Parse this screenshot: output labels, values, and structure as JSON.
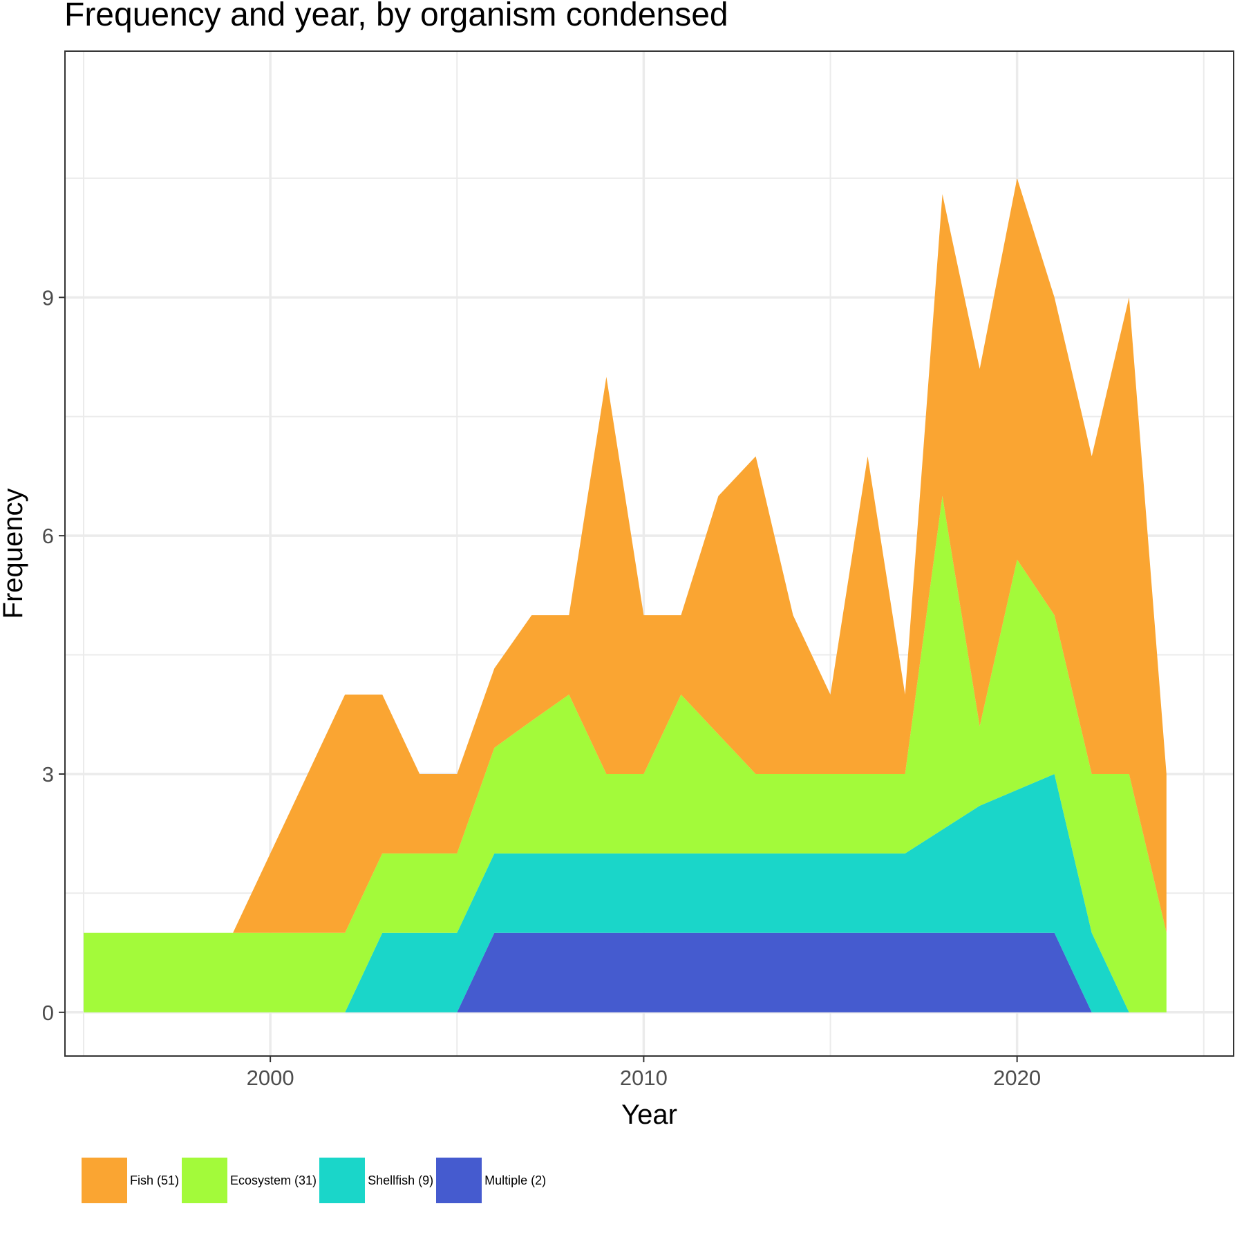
{
  "chart_data": {
    "type": "area",
    "stacked": true,
    "title": "Frequency and year, by organism condensed",
    "xlabel": "Year",
    "ylabel": "Frequency",
    "xlim": [
      1994.5,
      2025.8
    ],
    "ylim": [
      -0.55,
      12.1
    ],
    "x_ticks": [
      2000,
      2010,
      2020
    ],
    "y_ticks": [
      0,
      3,
      6,
      9
    ],
    "grid": true,
    "legend_position": "bottom",
    "x": [
      1995,
      1996,
      1997,
      1998,
      1999,
      2000,
      2001,
      2002,
      2003,
      2004,
      2005,
      2006,
      2007,
      2008,
      2009,
      2010,
      2011,
      2012,
      2013,
      2014,
      2015,
      2016,
      2017,
      2018,
      2019,
      2020,
      2021,
      2022,
      2023,
      2024
    ],
    "series": [
      {
        "name": "Multiple (2)",
        "color": "#455BCF",
        "values": [
          0,
          0,
          0,
          0,
          0,
          0,
          0,
          0,
          0,
          0,
          0,
          1,
          1,
          1,
          1,
          1,
          1,
          1,
          1,
          1,
          1,
          1,
          1,
          1,
          1,
          1,
          1,
          0,
          0,
          0
        ]
      },
      {
        "name": "Shellfish (9)",
        "color": "#1AD6C9",
        "values": [
          0,
          0,
          0,
          0,
          0,
          0,
          0,
          0,
          1,
          1,
          1,
          1,
          1,
          1,
          1,
          1,
          1,
          1,
          1,
          1,
          1,
          1,
          1,
          1.3,
          1.6,
          1.8,
          2,
          1,
          0,
          0
        ]
      },
      {
        "name": "Ecosystem (31)",
        "color": "#A3FA3A",
        "values": [
          1,
          1,
          1,
          1,
          1,
          1,
          1,
          1,
          1,
          1,
          1,
          1.33,
          1.67,
          2,
          1,
          1,
          2,
          1.5,
          1,
          1,
          1,
          1,
          1,
          4.2,
          1,
          2.9,
          2,
          2,
          3,
          1
        ]
      },
      {
        "name": "Fish (51)",
        "color": "#FAA532",
        "values": [
          0,
          0,
          0,
          0,
          0,
          1,
          2,
          3,
          2,
          1,
          1,
          1,
          1.33,
          1,
          5,
          2,
          1,
          3,
          4,
          2,
          1,
          4,
          1,
          3.8,
          4.5,
          4.8,
          4,
          4,
          6,
          2
        ]
      }
    ]
  }
}
